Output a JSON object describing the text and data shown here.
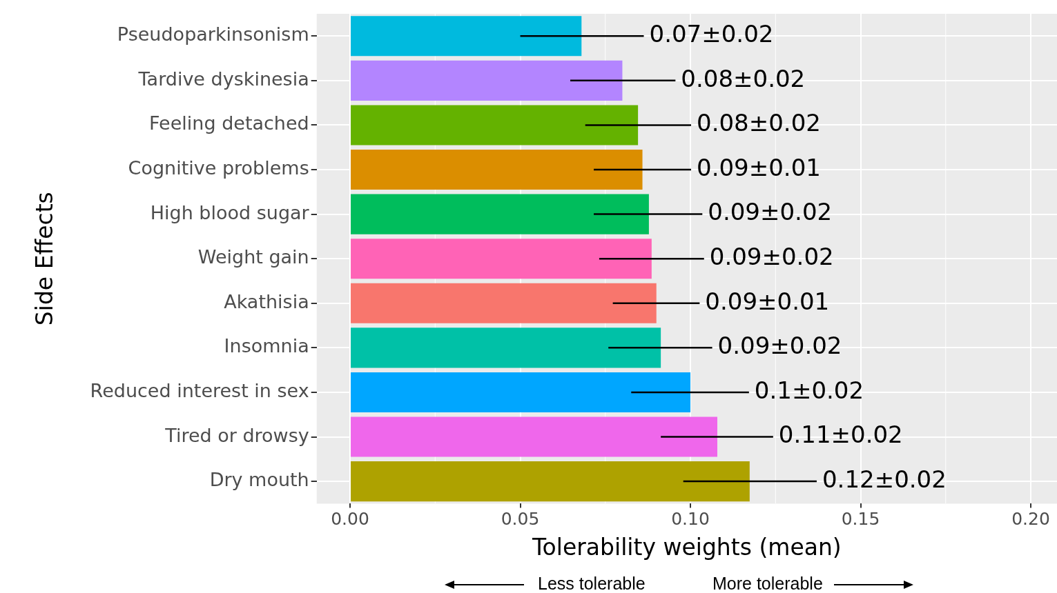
{
  "chart_data": {
    "type": "bar",
    "orientation": "horizontal",
    "categories": [
      "Pseudoparkinsonism",
      "Tardive dyskinesia",
      "Feeling detached",
      "Cognitive problems",
      "High blood sugar",
      "Weight gain",
      "Akathisia",
      "Insomnia",
      "Reduced interest in sex",
      "Tired or drowsy",
      "Dry mouth"
    ],
    "values": [
      0.068,
      0.08,
      0.0846,
      0.0859,
      0.0878,
      0.0886,
      0.09,
      0.0913,
      0.1,
      0.1079,
      0.1174
    ],
    "colors": [
      "#00bade",
      "#b385ff",
      "#64b200",
      "#db8e00",
      "#00bd5c",
      "#ff63b6",
      "#f8766d",
      "#00c1a7",
      "#00a6ff",
      "#ef67eb",
      "#aea200"
    ],
    "errors": [
      [
        0.05,
        0.0863
      ],
      [
        0.0647,
        0.0956
      ],
      [
        0.0691,
        0.1002
      ],
      [
        0.0716,
        0.1002
      ],
      [
        0.0716,
        0.1035
      ],
      [
        0.0732,
        0.104
      ],
      [
        0.0772,
        0.1027
      ],
      [
        0.0759,
        0.1064
      ],
      [
        0.0826,
        0.1172
      ],
      [
        0.0913,
        0.1243
      ],
      [
        0.0979,
        0.1371
      ]
    ],
    "value_labels": [
      "0.07±0.02",
      "0.08±0.02",
      "0.08±0.02",
      "0.09±0.01",
      "0.09±0.02",
      "0.09±0.02",
      "0.09±0.01",
      "0.09±0.02",
      "0.1±0.02",
      "0.11±0.02",
      "0.12±0.02"
    ],
    "xlim": [
      -0.0098,
      0.2077
    ],
    "xticks": [
      {
        "value": 0,
        "label": "0.00"
      },
      {
        "value": 0.05,
        "label": "0.05"
      },
      {
        "value": 0.1,
        "label": "0.10"
      },
      {
        "value": 0.15,
        "label": "0.15"
      },
      {
        "value": 0.2,
        "label": "0.20"
      }
    ],
    "xlabel": "Tolerability weights (mean)",
    "ylabel": "Side Effects",
    "annotations": [
      "Less tolerable",
      "More tolerable"
    ],
    "grid": true
  }
}
